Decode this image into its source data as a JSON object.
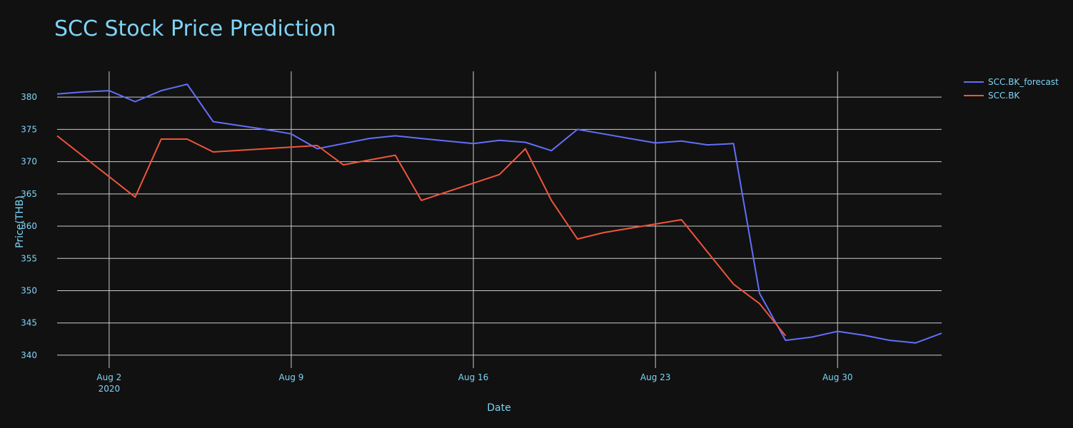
{
  "chart_data": {
    "type": "line",
    "title": "SCC Stock Price Prediction",
    "xlabel": "Date",
    "ylabel": "Price(THB)",
    "x_range": [
      "2020-07-31",
      "2020-09-03"
    ],
    "ylim": [
      338,
      384
    ],
    "y_ticks": [
      340,
      345,
      350,
      355,
      360,
      365,
      370,
      375,
      380
    ],
    "x_ticks": [
      {
        "date": "2020-08-02",
        "label": "Aug 2",
        "sublabel": "2020"
      },
      {
        "date": "2020-08-09",
        "label": "Aug 9",
        "sublabel": ""
      },
      {
        "date": "2020-08-16",
        "label": "Aug 16",
        "sublabel": ""
      },
      {
        "date": "2020-08-23",
        "label": "Aug 23",
        "sublabel": ""
      },
      {
        "date": "2020-08-30",
        "label": "Aug 30",
        "sublabel": ""
      }
    ],
    "grid": true,
    "legend_position": "top-right",
    "colors": {
      "background": "#111111",
      "grid": "#cccccc",
      "text": "#7fd4f5",
      "title": "#7fd4f5"
    },
    "series": [
      {
        "name": "SCC.BK_forecast",
        "color": "#636efa",
        "x": [
          "2020-07-31",
          "2020-08-01",
          "2020-08-02",
          "2020-08-03",
          "2020-08-04",
          "2020-08-05",
          "2020-08-06",
          "2020-08-07",
          "2020-08-08",
          "2020-08-09",
          "2020-08-10",
          "2020-08-11",
          "2020-08-12",
          "2020-08-13",
          "2020-08-14",
          "2020-08-15",
          "2020-08-16",
          "2020-08-17",
          "2020-08-18",
          "2020-08-19",
          "2020-08-20",
          "2020-08-21",
          "2020-08-22",
          "2020-08-23",
          "2020-08-24",
          "2020-08-25",
          "2020-08-26",
          "2020-08-27",
          "2020-08-28",
          "2020-08-29",
          "2020-08-30",
          "2020-08-31",
          "2020-09-01",
          "2020-09-02",
          "2020-09-03"
        ],
        "y": [
          380.5,
          380.8,
          381.0,
          379.3,
          381.0,
          382.0,
          376.2,
          375.6,
          375.0,
          374.3,
          372.0,
          372.8,
          373.6,
          374.0,
          373.6,
          373.2,
          372.8,
          373.3,
          373.0,
          371.7,
          375.0,
          374.3,
          373.6,
          372.9,
          373.2,
          372.6,
          372.8,
          349.6,
          342.3,
          342.8,
          343.7,
          343.1,
          342.3,
          341.9,
          343.4
        ]
      },
      {
        "name": "SCC.BK",
        "color": "#ef553b",
        "x": [
          "2020-07-31",
          "2020-08-03",
          "2020-08-04",
          "2020-08-05",
          "2020-08-06",
          "2020-08-10",
          "2020-08-11",
          "2020-08-13",
          "2020-08-14",
          "2020-08-17",
          "2020-08-18",
          "2020-08-19",
          "2020-08-20",
          "2020-08-21",
          "2020-08-24",
          "2020-08-25",
          "2020-08-26",
          "2020-08-27",
          "2020-08-28"
        ],
        "y": [
          374.0,
          364.5,
          373.5,
          373.5,
          371.5,
          372.5,
          369.5,
          371.0,
          364.0,
          368.0,
          372.0,
          364.0,
          358.0,
          359.0,
          361.0,
          356.0,
          351.0,
          348.0,
          343.0
        ]
      }
    ]
  }
}
